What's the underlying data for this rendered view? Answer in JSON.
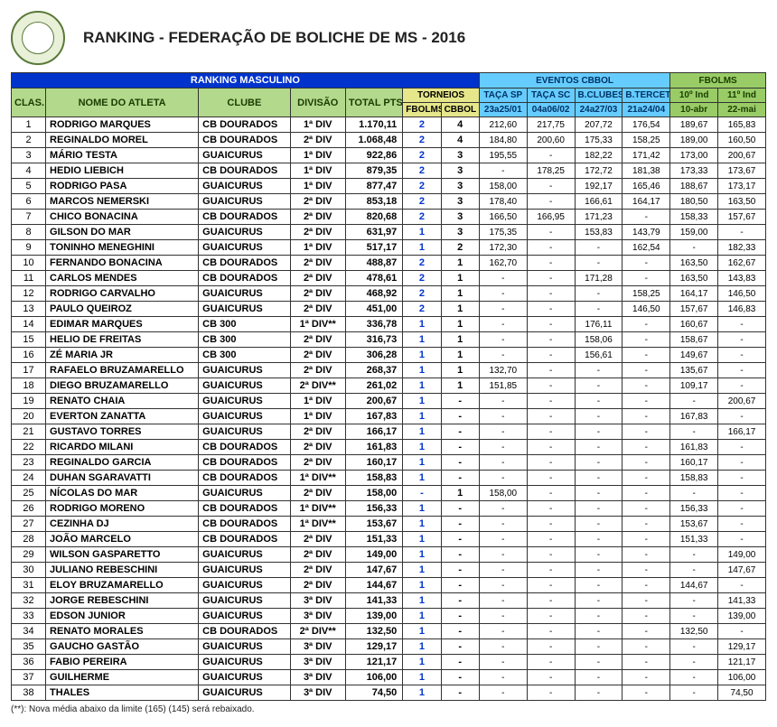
{
  "title": "RANKING - FEDERAÇÃO DE BOLICHE DE MS - 2016",
  "section_title": "RANKING MASCULINO",
  "group_labels": {
    "eventos": "EVENTOS CBBOL",
    "fbolms": "FBOLMS",
    "torneios": "TORNEIOS"
  },
  "columns": {
    "clas": "CLAS.",
    "nome": "NOME DO ATLETA",
    "clube": "CLUBE",
    "divisao": "DIVISÃO",
    "total": "TOTAL PTS",
    "torn_f": "FBOLMS",
    "torn_c": "CBBOL",
    "ev1": "TAÇA SP",
    "ev2": "TAÇA SC",
    "ev3": "B.CLUBES",
    "ev4": "B.TERCET",
    "fb1": "10º Ind",
    "fb2": "11º Ind",
    "ev1d": "23a25/01",
    "ev2d": "04a06/02",
    "ev3d": "24a27/03",
    "ev4d": "21a24/04",
    "fb1d": "10-abr",
    "fb2d": "22-mai"
  },
  "footnote": "(**): Nova média abaixo da limite (165) (145) será rebaixado.",
  "rows": [
    {
      "r": 1,
      "nome": "RODRIGO MARQUES",
      "clube": "CB DOURADOS",
      "div": "1ª DIV",
      "pts": "1.170,11",
      "tf": "2",
      "tc": "4",
      "e1": "212,60",
      "e2": "217,75",
      "e3": "207,72",
      "e4": "176,54",
      "f1": "189,67",
      "f2": "165,83"
    },
    {
      "r": 2,
      "nome": "REGINALDO MOREL",
      "clube": "CB DOURADOS",
      "div": "2ª DIV",
      "pts": "1.068,48",
      "tf": "2",
      "tc": "4",
      "e1": "184,80",
      "e2": "200,60",
      "e3": "175,33",
      "e4": "158,25",
      "f1": "189,00",
      "f2": "160,50"
    },
    {
      "r": 3,
      "nome": "MÁRIO TESTA",
      "clube": "GUAICURUS",
      "div": "1ª DIV",
      "pts": "922,86",
      "tf": "2",
      "tc": "3",
      "e1": "195,55",
      "e2": "-",
      "e3": "182,22",
      "e4": "171,42",
      "f1": "173,00",
      "f2": "200,67"
    },
    {
      "r": 4,
      "nome": "HEDIO LIEBICH",
      "clube": "CB DOURADOS",
      "div": "1ª DIV",
      "pts": "879,35",
      "tf": "2",
      "tc": "3",
      "e1": "-",
      "e2": "178,25",
      "e3": "172,72",
      "e4": "181,38",
      "f1": "173,33",
      "f2": "173,67"
    },
    {
      "r": 5,
      "nome": "RODRIGO PASA",
      "clube": "GUAICURUS",
      "div": "1ª DIV",
      "pts": "877,47",
      "tf": "2",
      "tc": "3",
      "e1": "158,00",
      "e2": "-",
      "e3": "192,17",
      "e4": "165,46",
      "f1": "188,67",
      "f2": "173,17"
    },
    {
      "r": 6,
      "nome": "MARCOS NEMERSKI",
      "clube": "GUAICURUS",
      "div": "2ª DIV",
      "pts": "853,18",
      "tf": "2",
      "tc": "3",
      "e1": "178,40",
      "e2": "-",
      "e3": "166,61",
      "e4": "164,17",
      "f1": "180,50",
      "f2": "163,50"
    },
    {
      "r": 7,
      "nome": "CHICO BONACINA",
      "clube": "CB DOURADOS",
      "div": "2ª DIV",
      "pts": "820,68",
      "tf": "2",
      "tc": "3",
      "e1": "166,50",
      "e2": "166,95",
      "e3": "171,23",
      "e4": "-",
      "f1": "158,33",
      "f2": "157,67"
    },
    {
      "r": 8,
      "nome": "GILSON DO MAR",
      "clube": "GUAICURUS",
      "div": "2ª DIV",
      "pts": "631,97",
      "tf": "1",
      "tc": "3",
      "e1": "175,35",
      "e2": "-",
      "e3": "153,83",
      "e4": "143,79",
      "f1": "159,00",
      "f2": "-"
    },
    {
      "r": 9,
      "nome": "TONINHO MENEGHINI",
      "clube": "GUAICURUS",
      "div": "1ª DIV",
      "pts": "517,17",
      "tf": "1",
      "tc": "2",
      "e1": "172,30",
      "e2": "-",
      "e3": "-",
      "e4": "162,54",
      "f1": "-",
      "f2": "182,33"
    },
    {
      "r": 10,
      "nome": "FERNANDO BONACINA",
      "clube": "CB DOURADOS",
      "div": "2ª DIV",
      "pts": "488,87",
      "tf": "2",
      "tc": "1",
      "e1": "162,70",
      "e2": "-",
      "e3": "-",
      "e4": "-",
      "f1": "163,50",
      "f2": "162,67"
    },
    {
      "r": 11,
      "nome": "CARLOS MENDES",
      "clube": "CB DOURADOS",
      "div": "2ª DIV",
      "pts": "478,61",
      "tf": "2",
      "tc": "1",
      "e1": "-",
      "e2": "-",
      "e3": "171,28",
      "e4": "-",
      "f1": "163,50",
      "f2": "143,83"
    },
    {
      "r": 12,
      "nome": "RODRIGO CARVALHO",
      "clube": "GUAICURUS",
      "div": "2ª DIV",
      "pts": "468,92",
      "tf": "2",
      "tc": "1",
      "e1": "-",
      "e2": "-",
      "e3": "-",
      "e4": "158,25",
      "f1": "164,17",
      "f2": "146,50"
    },
    {
      "r": 13,
      "nome": "PAULO QUEIROZ",
      "clube": "GUAICURUS",
      "div": "2ª DIV",
      "pts": "451,00",
      "tf": "2",
      "tc": "1",
      "e1": "-",
      "e2": "-",
      "e3": "-",
      "e4": "146,50",
      "f1": "157,67",
      "f2": "146,83"
    },
    {
      "r": 14,
      "nome": "EDIMAR MARQUES",
      "clube": "CB 300",
      "div": "1ª DIV**",
      "pts": "336,78",
      "tf": "1",
      "tc": "1",
      "e1": "-",
      "e2": "-",
      "e3": "176,11",
      "e4": "-",
      "f1": "160,67",
      "f2": "-"
    },
    {
      "r": 15,
      "nome": "HELIO DE FREITAS",
      "clube": "CB 300",
      "div": "2ª DIV",
      "pts": "316,73",
      "tf": "1",
      "tc": "1",
      "e1": "-",
      "e2": "-",
      "e3": "158,06",
      "e4": "-",
      "f1": "158,67",
      "f2": "-"
    },
    {
      "r": 16,
      "nome": "ZÉ MARIA JR",
      "clube": "CB 300",
      "div": "2ª DIV",
      "pts": "306,28",
      "tf": "1",
      "tc": "1",
      "e1": "-",
      "e2": "-",
      "e3": "156,61",
      "e4": "-",
      "f1": "149,67",
      "f2": "-"
    },
    {
      "r": 17,
      "nome": "RAFAELO BRUZAMARELLO",
      "clube": "GUAICURUS",
      "div": "2ª DIV",
      "pts": "268,37",
      "tf": "1",
      "tc": "1",
      "e1": "132,70",
      "e2": "-",
      "e3": "-",
      "e4": "-",
      "f1": "135,67",
      "f2": "-"
    },
    {
      "r": 18,
      "nome": "DIEGO BRUZAMARELLO",
      "clube": "GUAICURUS",
      "div": "2ª DIV**",
      "pts": "261,02",
      "tf": "1",
      "tc": "1",
      "e1": "151,85",
      "e2": "-",
      "e3": "-",
      "e4": "-",
      "f1": "109,17",
      "f2": "-"
    },
    {
      "r": 19,
      "nome": "RENATO CHAIA",
      "clube": "GUAICURUS",
      "div": "1ª DIV",
      "pts": "200,67",
      "tf": "1",
      "tc": "-",
      "e1": "-",
      "e2": "-",
      "e3": "-",
      "e4": "-",
      "f1": "-",
      "f2": "200,67"
    },
    {
      "r": 20,
      "nome": "EVERTON ZANATTA",
      "clube": "GUAICURUS",
      "div": "1ª DIV",
      "pts": "167,83",
      "tf": "1",
      "tc": "-",
      "e1": "-",
      "e2": "-",
      "e3": "-",
      "e4": "-",
      "f1": "167,83",
      "f2": "-"
    },
    {
      "r": 21,
      "nome": "GUSTAVO TORRES",
      "clube": "GUAICURUS",
      "div": "2ª DIV",
      "pts": "166,17",
      "tf": "1",
      "tc": "-",
      "e1": "-",
      "e2": "-",
      "e3": "-",
      "e4": "-",
      "f1": "-",
      "f2": "166,17"
    },
    {
      "r": 22,
      "nome": "RICARDO MILANI",
      "clube": "CB DOURADOS",
      "div": "2ª DIV",
      "pts": "161,83",
      "tf": "1",
      "tc": "-",
      "e1": "-",
      "e2": "-",
      "e3": "-",
      "e4": "-",
      "f1": "161,83",
      "f2": "-"
    },
    {
      "r": 23,
      "nome": "REGINALDO GARCIA",
      "clube": "CB DOURADOS",
      "div": "2ª DIV",
      "pts": "160,17",
      "tf": "1",
      "tc": "-",
      "e1": "-",
      "e2": "-",
      "e3": "-",
      "e4": "-",
      "f1": "160,17",
      "f2": "-"
    },
    {
      "r": 24,
      "nome": "DUHAN SGARAVATTI",
      "clube": "CB DOURADOS",
      "div": "1ª DIV**",
      "pts": "158,83",
      "tf": "1",
      "tc": "-",
      "e1": "-",
      "e2": "-",
      "e3": "-",
      "e4": "-",
      "f1": "158,83",
      "f2": "-"
    },
    {
      "r": 25,
      "nome": "NÍCOLAS DO MAR",
      "clube": "GUAICURUS",
      "div": "2ª DIV",
      "pts": "158,00",
      "tf": "-",
      "tc": "1",
      "e1": "158,00",
      "e2": "-",
      "e3": "-",
      "e4": "-",
      "f1": "-",
      "f2": "-"
    },
    {
      "r": 26,
      "nome": "RODRIGO MORENO",
      "clube": "CB DOURADOS",
      "div": "1ª DIV**",
      "pts": "156,33",
      "tf": "1",
      "tc": "-",
      "e1": "-",
      "e2": "-",
      "e3": "-",
      "e4": "-",
      "f1": "156,33",
      "f2": "-"
    },
    {
      "r": 27,
      "nome": "CEZINHA DJ",
      "clube": "CB DOURADOS",
      "div": "1ª DIV**",
      "pts": "153,67",
      "tf": "1",
      "tc": "-",
      "e1": "-",
      "e2": "-",
      "e3": "-",
      "e4": "-",
      "f1": "153,67",
      "f2": "-"
    },
    {
      "r": 28,
      "nome": "JOÃO MARCELO",
      "clube": "CB DOURADOS",
      "div": "2ª DIV",
      "pts": "151,33",
      "tf": "1",
      "tc": "-",
      "e1": "-",
      "e2": "-",
      "e3": "-",
      "e4": "-",
      "f1": "151,33",
      "f2": "-"
    },
    {
      "r": 29,
      "nome": "WILSON GASPARETTO",
      "clube": "GUAICURUS",
      "div": "2ª DIV",
      "pts": "149,00",
      "tf": "1",
      "tc": "-",
      "e1": "-",
      "e2": "-",
      "e3": "-",
      "e4": "-",
      "f1": "-",
      "f2": "149,00"
    },
    {
      "r": 30,
      "nome": "JULIANO REBESCHINI",
      "clube": "GUAICURUS",
      "div": "2ª DIV",
      "pts": "147,67",
      "tf": "1",
      "tc": "-",
      "e1": "-",
      "e2": "-",
      "e3": "-",
      "e4": "-",
      "f1": "-",
      "f2": "147,67"
    },
    {
      "r": 31,
      "nome": "ELOY BRUZAMARELLO",
      "clube": "GUAICURUS",
      "div": "2ª DIV",
      "pts": "144,67",
      "tf": "1",
      "tc": "-",
      "e1": "-",
      "e2": "-",
      "e3": "-",
      "e4": "-",
      "f1": "144,67",
      "f2": "-"
    },
    {
      "r": 32,
      "nome": "JORGE REBESCHINI",
      "clube": "GUAICURUS",
      "div": "3ª DIV",
      "pts": "141,33",
      "tf": "1",
      "tc": "-",
      "e1": "-",
      "e2": "-",
      "e3": "-",
      "e4": "-",
      "f1": "-",
      "f2": "141,33"
    },
    {
      "r": 33,
      "nome": "EDSON JUNIOR",
      "clube": "GUAICURUS",
      "div": "3ª DIV",
      "pts": "139,00",
      "tf": "1",
      "tc": "-",
      "e1": "-",
      "e2": "-",
      "e3": "-",
      "e4": "-",
      "f1": "-",
      "f2": "139,00"
    },
    {
      "r": 34,
      "nome": "RENATO MORALES",
      "clube": "CB DOURADOS",
      "div": "2ª DIV**",
      "pts": "132,50",
      "tf": "1",
      "tc": "-",
      "e1": "-",
      "e2": "-",
      "e3": "-",
      "e4": "-",
      "f1": "132,50",
      "f2": "-"
    },
    {
      "r": 35,
      "nome": "GAUCHO GASTÃO",
      "clube": "GUAICURUS",
      "div": "3ª DIV",
      "pts": "129,17",
      "tf": "1",
      "tc": "-",
      "e1": "-",
      "e2": "-",
      "e3": "-",
      "e4": "-",
      "f1": "-",
      "f2": "129,17"
    },
    {
      "r": 36,
      "nome": "FABIO PEREIRA",
      "clube": "GUAICURUS",
      "div": "3ª DIV",
      "pts": "121,17",
      "tf": "1",
      "tc": "-",
      "e1": "-",
      "e2": "-",
      "e3": "-",
      "e4": "-",
      "f1": "-",
      "f2": "121,17"
    },
    {
      "r": 37,
      "nome": "GUILHERME",
      "clube": "GUAICURUS",
      "div": "3ª DIV",
      "pts": "106,00",
      "tf": "1",
      "tc": "-",
      "e1": "-",
      "e2": "-",
      "e3": "-",
      "e4": "-",
      "f1": "-",
      "f2": "106,00"
    },
    {
      "r": 38,
      "nome": "THALES",
      "clube": "GUAICURUS",
      "div": "3ª DIV",
      "pts": "74,50",
      "tf": "1",
      "tc": "-",
      "e1": "-",
      "e2": "-",
      "e3": "-",
      "e4": "-",
      "f1": "-",
      "f2": "74,50"
    }
  ]
}
